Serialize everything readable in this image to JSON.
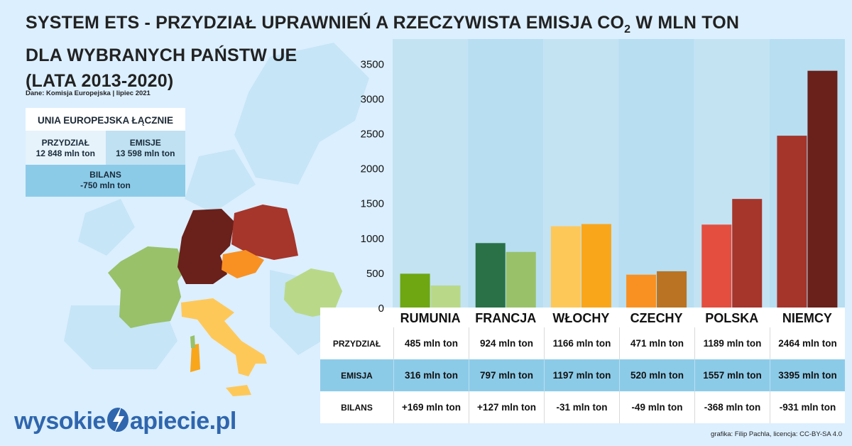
{
  "title": {
    "line1_pre": "SYSTEM ETS - PRZYDZIAŁ UPRAWNIEŃ A RZECZYWISTA EMISJA CO",
    "line1_sub": "2",
    "line1_post": " W MLN TON",
    "line2": "DLA WYBRANYCH PAŃSTW UE",
    "line3": "(LATA 2013-2020)"
  },
  "source": "Dane: Komisja Europejska | lipiec 2021",
  "eu_summary": {
    "heading": "UNIA EUROPEJSKA ŁĄCZNIE",
    "allocation_label": "PRZYDZIAŁ",
    "allocation_value": "12 848 mln ton",
    "emissions_label": "EMISJE",
    "emissions_value": "13 598 mln ton",
    "balance_label": "BILANS",
    "balance_value": "-750 mln ton"
  },
  "chart_data": {
    "type": "bar",
    "categories": [
      "RUMUNIA",
      "FRANCJA",
      "WŁOCHY",
      "CZECHY",
      "POLSKA",
      "NIEMCY"
    ],
    "series": [
      {
        "name": "PRZYDZIAŁ",
        "values": [
          485,
          924,
          1166,
          471,
          1189,
          2464
        ]
      },
      {
        "name": "EMISJA",
        "values": [
          316,
          797,
          1197,
          520,
          1557,
          3395
        ]
      }
    ],
    "colors": [
      [
        "#6ea712",
        "#b9d989"
      ],
      [
        "#2a7147",
        "#98c16a"
      ],
      [
        "#fec859",
        "#f9a61b"
      ],
      [
        "#f99122",
        "#b97322"
      ],
      [
        "#e34e3f",
        "#a6352b"
      ],
      [
        "#a5352b",
        "#6a201b"
      ]
    ],
    "yticks": [
      0,
      500,
      1000,
      1500,
      2000,
      2500,
      3000,
      3500
    ],
    "ylim": [
      0,
      3850
    ]
  },
  "table": {
    "row_labels": [
      "PRZYDZIAŁ",
      "EMISJA",
      "BILANS"
    ],
    "rows": [
      [
        "485 mln ton",
        "924 mln ton",
        "1166 mln ton",
        "471 mln ton",
        "1189 mln ton",
        "2464 mln ton"
      ],
      [
        "316 mln ton",
        "797 mln ton",
        "1197 mln ton",
        "520 mln ton",
        "1557 mln ton",
        "3395 mln ton"
      ],
      [
        "+169 mln ton",
        "+127 mln ton",
        "-31 mln ton",
        "-49 mln ton",
        "-368 mln ton",
        "-931 mln ton"
      ]
    ]
  },
  "logo": {
    "part1": "wysokie",
    "part2": "apiecie.pl"
  },
  "credit": "grafika: Filip Pachla, licencja: CC-BY-SA 4.0"
}
